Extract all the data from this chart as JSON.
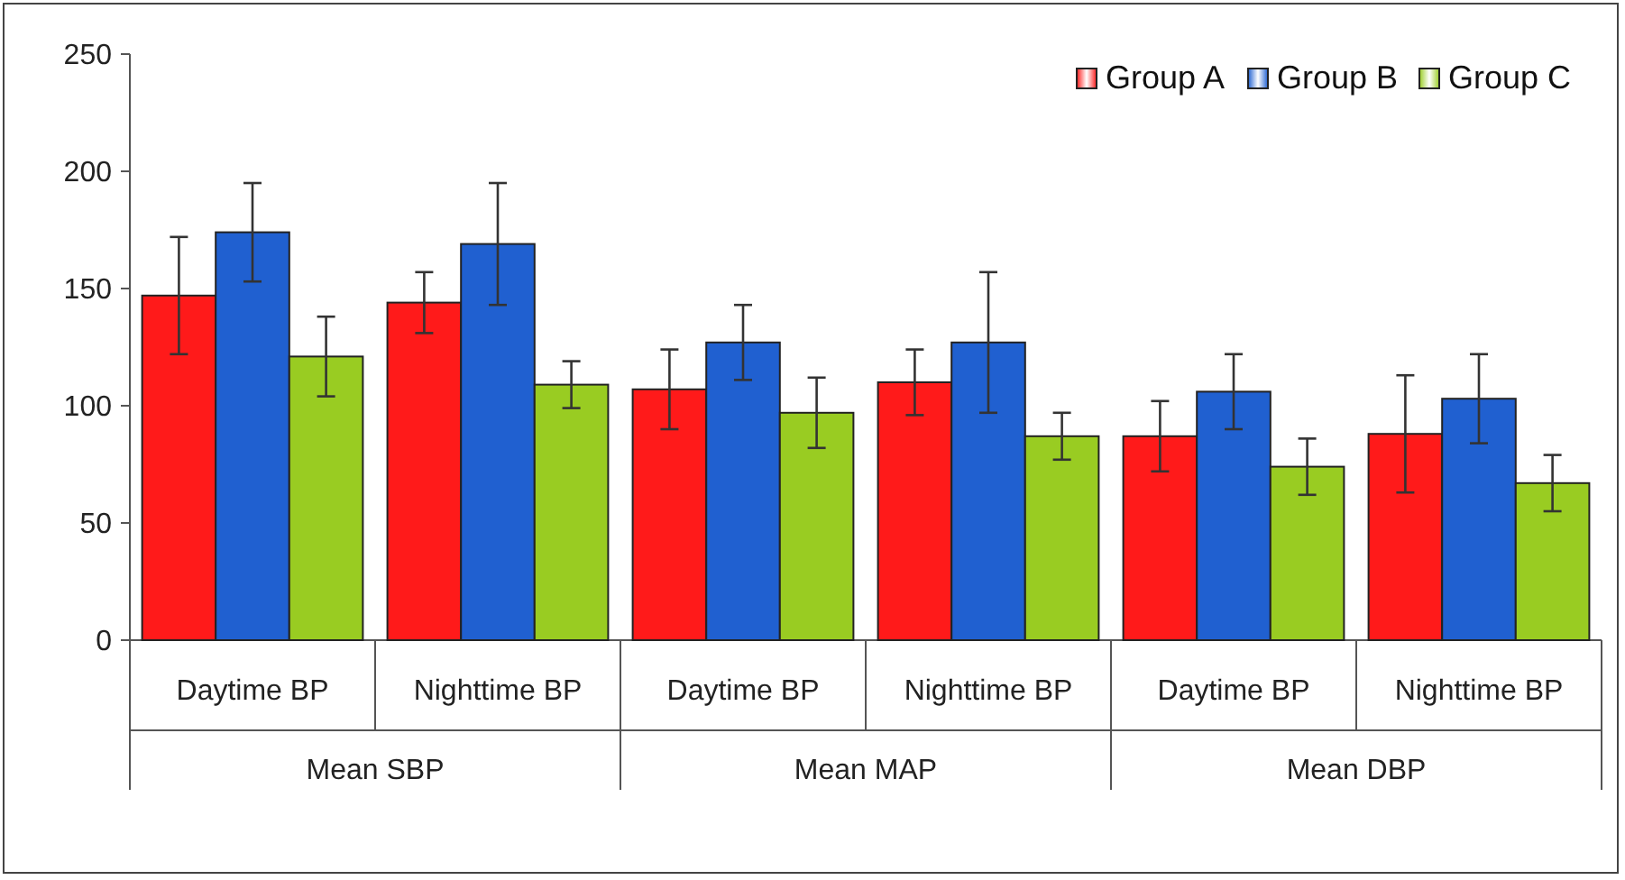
{
  "chart_data": {
    "type": "bar",
    "categories": [
      "Daytime BP",
      "Nighttime BP",
      "Daytime BP",
      "Nighttime BP",
      "Daytime BP",
      "Nighttime BP"
    ],
    "annotations": [
      "Mean SBP",
      "Mean MAP",
      "Mean DBP"
    ],
    "series": [
      {
        "name": "Group A",
        "color": "#ff1a1a",
        "values": [
          147,
          144,
          107,
          110,
          87,
          88
        ],
        "errors": [
          25,
          13,
          17,
          14,
          15,
          25
        ]
      },
      {
        "name": "Group B",
        "color": "#2060d0",
        "values": [
          174,
          169,
          127,
          127,
          106,
          103
        ],
        "errors": [
          21,
          26,
          16,
          30,
          16,
          19
        ]
      },
      {
        "name": "Group C",
        "color": "#99cc22",
        "values": [
          121,
          109,
          97,
          87,
          74,
          67
        ],
        "errors": [
          17,
          10,
          15,
          10,
          12,
          12
        ]
      }
    ],
    "ylim": [
      0,
      250
    ],
    "yticks": [
      0,
      50,
      100,
      150,
      200,
      250
    ],
    "grid": false,
    "legend": "top right"
  }
}
